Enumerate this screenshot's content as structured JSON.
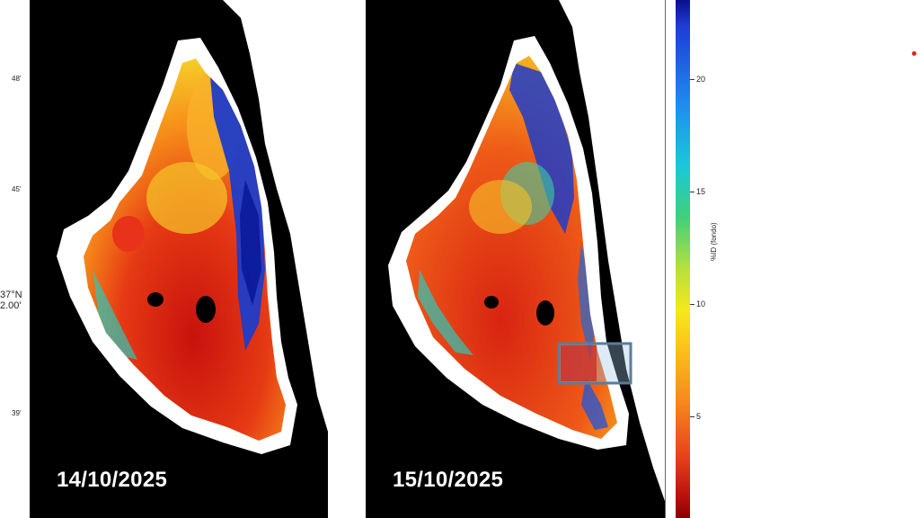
{
  "panels": [
    {
      "date": "14/10/2025"
    },
    {
      "date": "15/10/2025"
    }
  ],
  "latitude_ticks": [
    "48'",
    "45'",
    "37°N",
    "2.00'",
    "39'"
  ],
  "colorbar": {
    "title": "%ID (fondo)",
    "ticks": [
      "20",
      "15",
      "10",
      "5"
    ]
  },
  "colors": {
    "land": "#000000",
    "coast_buffer": "#ffffff",
    "highlight_box": "#5a7d9a"
  }
}
